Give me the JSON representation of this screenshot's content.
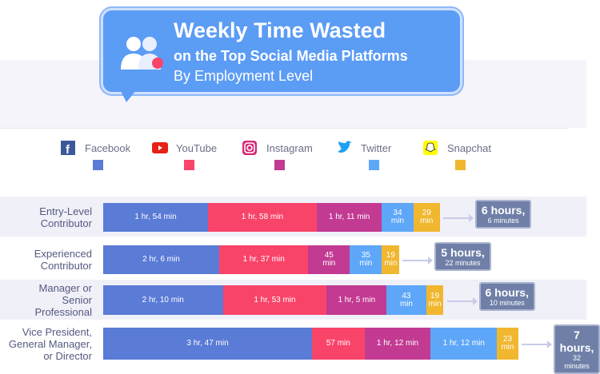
{
  "header": {
    "title": "Weekly Time Wasted",
    "subtitle": "on the Top Social Media Platforms",
    "subtitle2": "By Employment Level"
  },
  "chart_data": {
    "type": "bar",
    "stacked": true,
    "orientation": "horizontal",
    "title": "Weekly Time Wasted on the Top Social Media Platforms",
    "subtitle": "By Employment Level",
    "categories": [
      "Entry-Level Contributor",
      "Experienced Contributor",
      "Manager or Senior Professional",
      "Vice President, General Manager, or Director"
    ],
    "series": [
      {
        "name": "Facebook",
        "color": "#5a7bd6",
        "icon": "facebook-icon",
        "values": [
          114,
          126,
          130,
          227
        ],
        "labels": [
          "1 hr, 54 min",
          "2 hr, 6 min",
          "2 hr, 10 min",
          "3 hr, 47 min"
        ]
      },
      {
        "name": "YouTube",
        "color": "#f9446a",
        "icon": "youtube-icon",
        "values": [
          118,
          97,
          113,
          57
        ],
        "labels": [
          "1 hr, 58 min",
          "1 hr, 37 min",
          "1 hr, 53 min",
          "57 min"
        ]
      },
      {
        "name": "Instagram",
        "color": "#c23a91",
        "icon": "instagram-icon",
        "values": [
          71,
          45,
          65,
          72
        ],
        "labels": [
          "1 hr, 11 min",
          "45 min",
          "1 hr, 5 min",
          "1 hr, 12 min"
        ]
      },
      {
        "name": "Twitter",
        "color": "#5ea7f8",
        "icon": "twitter-icon",
        "values": [
          34,
          35,
          43,
          72
        ],
        "labels": [
          "34 min",
          "35 min",
          "43 min",
          "1 hr, 12 min"
        ]
      },
      {
        "name": "Snapchat",
        "color": "#f0b72f",
        "icon": "snapchat-icon",
        "values": [
          29,
          19,
          19,
          23
        ],
        "labels": [
          "29 min",
          "19 min",
          "19 min",
          "23 min"
        ]
      }
    ],
    "totals": [
      {
        "hours": "6 hours,",
        "minutes": "6 minutes"
      },
      {
        "hours": "5 hours,",
        "minutes": "22 minutes"
      },
      {
        "hours": "6 hours,",
        "minutes": "10 minutes"
      },
      {
        "hours": "7 hours,",
        "minutes": "32 minutes"
      }
    ],
    "unit": "minutes",
    "legend": "top"
  }
}
